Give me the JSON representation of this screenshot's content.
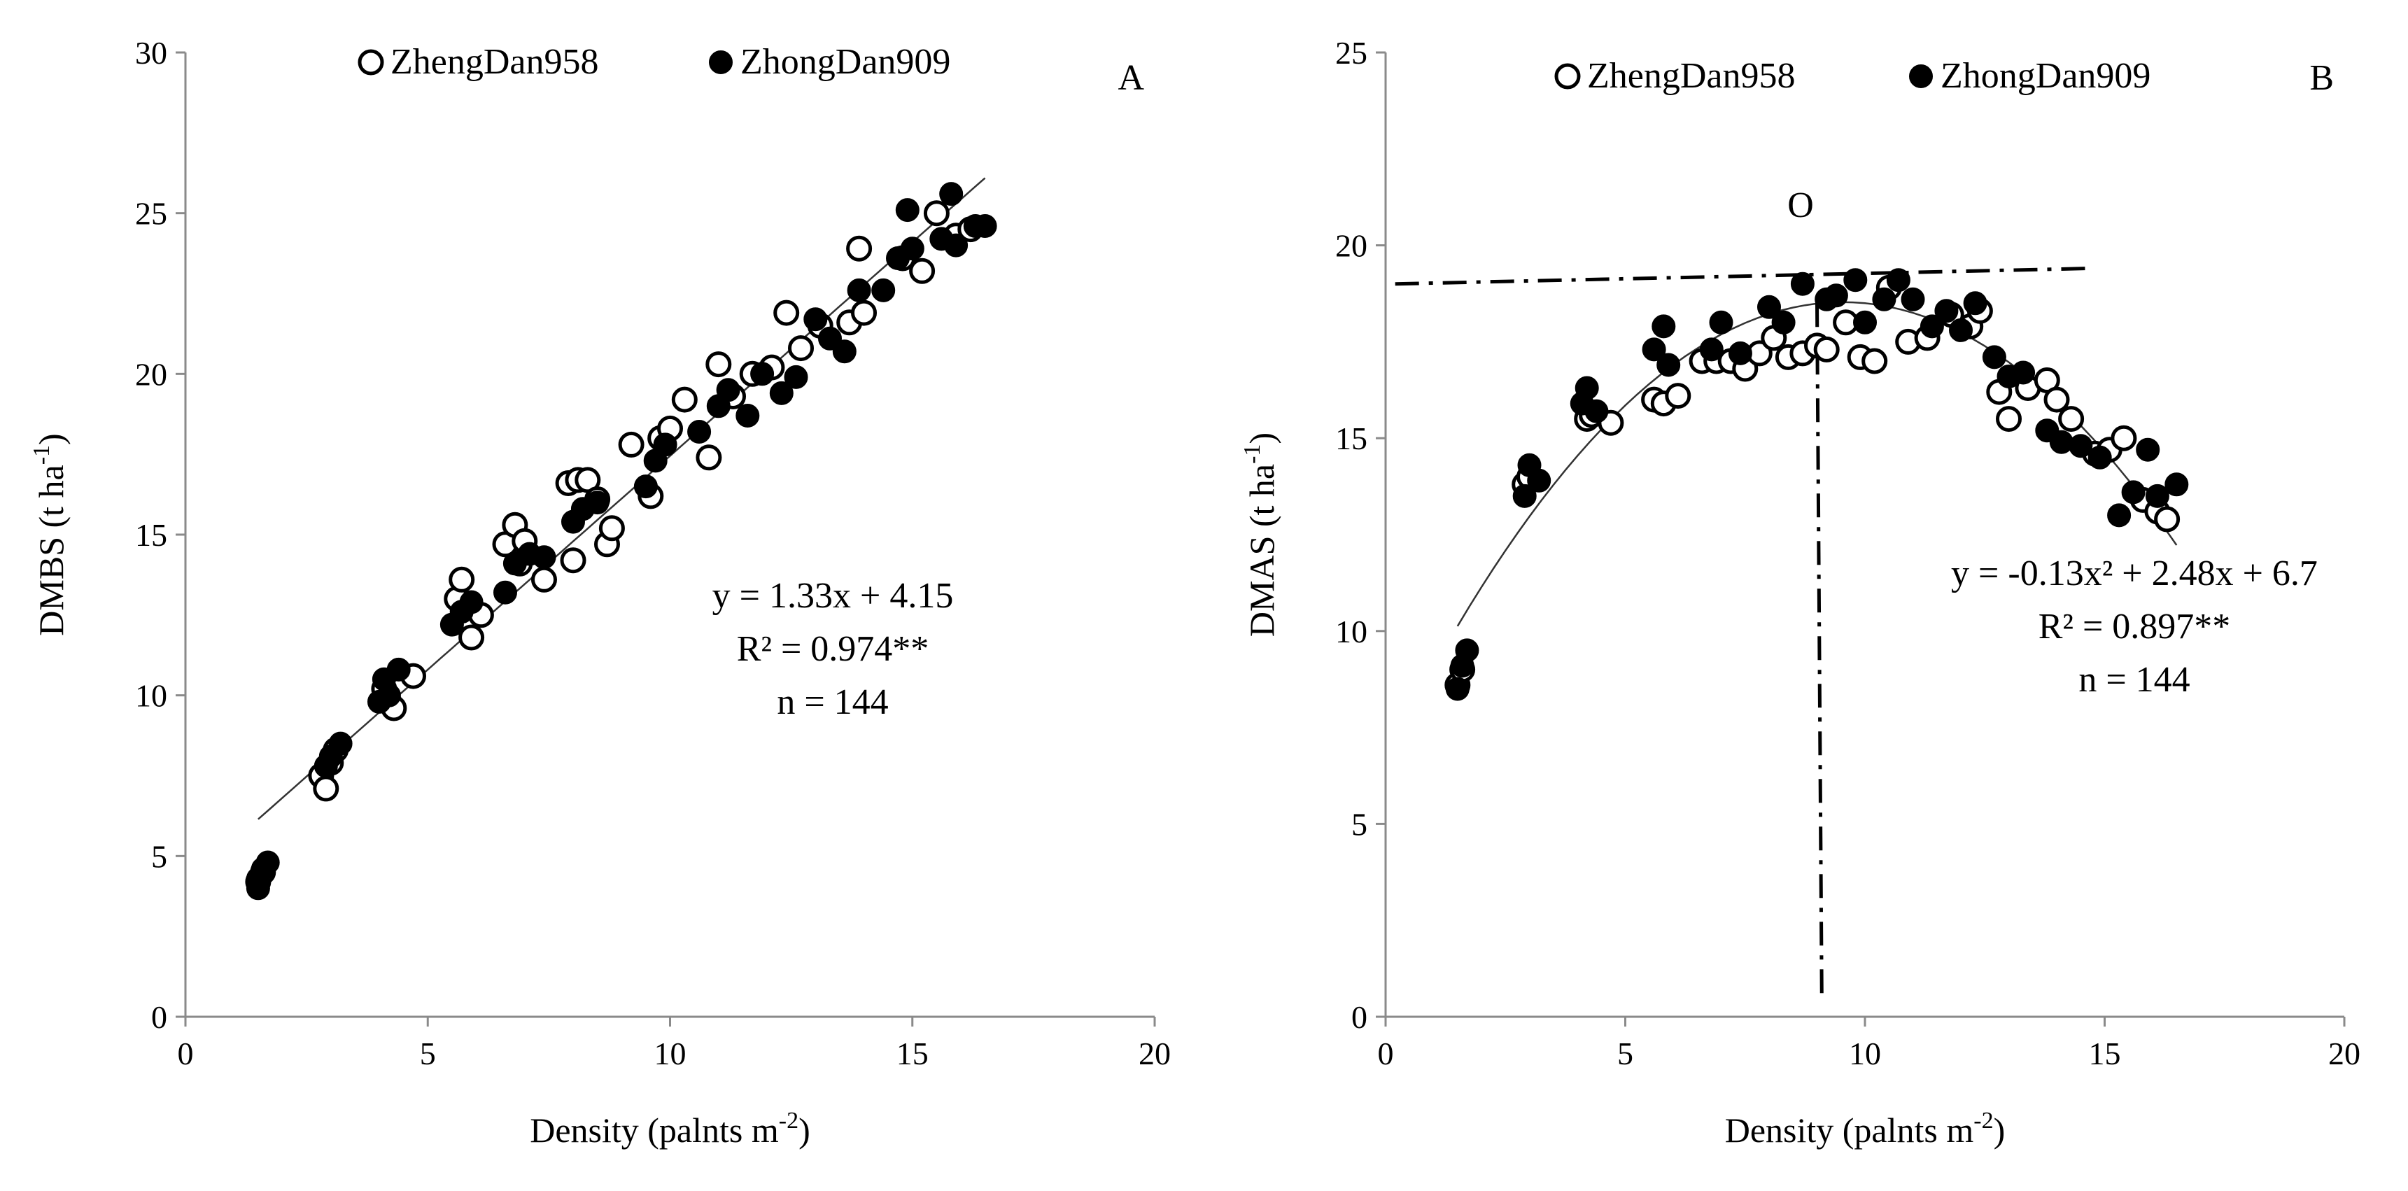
{
  "chart_data": [
    {
      "panel": "A",
      "type": "scatter",
      "xlabel": "Density (palnts m",
      "xlabel_sup": "-2",
      "xlabel_end": ")",
      "ylabel": "DMBS (t ha",
      "ylabel_sup": "-1",
      "ylabel_end": ")",
      "xlim": [
        0,
        20
      ],
      "ylim": [
        0,
        30
      ],
      "xticks": [
        0,
        5,
        10,
        15,
        20
      ],
      "yticks": [
        0,
        5,
        10,
        15,
        20,
        25,
        30
      ],
      "legend": [
        "ZhengDan958",
        "ZhongDan909"
      ],
      "legend_position": "top",
      "annotations": [
        "y = 1.33x + 4.15",
        "R² = 0.974**",
        "n = 144"
      ],
      "fit": {
        "type": "linear",
        "a": 1.33,
        "b": 4.15,
        "x_range": [
          1.5,
          16.5
        ]
      },
      "series": [
        {
          "name": "ZhengDan958",
          "marker": "open",
          "points": [
            [
              1.5,
              4.2
            ],
            [
              1.6,
              4.5
            ],
            [
              2.8,
              7.5
            ],
            [
              2.9,
              7.1
            ],
            [
              3.0,
              7.9
            ],
            [
              3.1,
              8.3
            ],
            [
              4.1,
              10.2
            ],
            [
              4.2,
              9.8
            ],
            [
              4.3,
              9.6
            ],
            [
              4.7,
              10.6
            ],
            [
              5.6,
              13.0
            ],
            [
              5.7,
              13.6
            ],
            [
              5.8,
              12.2
            ],
            [
              5.9,
              11.8
            ],
            [
              6.1,
              12.5
            ],
            [
              6.6,
              14.7
            ],
            [
              6.8,
              15.3
            ],
            [
              6.9,
              14.1
            ],
            [
              7.0,
              14.8
            ],
            [
              7.4,
              13.6
            ],
            [
              7.9,
              16.6
            ],
            [
              8.0,
              14.2
            ],
            [
              8.1,
              16.7
            ],
            [
              8.3,
              16.7
            ],
            [
              8.5,
              16.1
            ],
            [
              8.7,
              14.7
            ],
            [
              8.8,
              15.2
            ],
            [
              9.2,
              17.8
            ],
            [
              9.6,
              16.2
            ],
            [
              9.8,
              18.0
            ],
            [
              10.0,
              18.3
            ],
            [
              10.3,
              19.2
            ],
            [
              10.8,
              17.4
            ],
            [
              11.0,
              20.3
            ],
            [
              11.3,
              19.3
            ],
            [
              11.7,
              20.0
            ],
            [
              12.1,
              20.2
            ],
            [
              12.4,
              21.9
            ],
            [
              12.7,
              20.8
            ],
            [
              13.1,
              21.5
            ],
            [
              13.7,
              21.6
            ],
            [
              13.9,
              23.9
            ],
            [
              14.0,
              21.9
            ],
            [
              14.8,
              23.6
            ],
            [
              15.2,
              23.2
            ],
            [
              15.5,
              25.0
            ],
            [
              15.9,
              24.3
            ],
            [
              16.2,
              24.5
            ]
          ]
        },
        {
          "name": "ZhongDan909",
          "marker": "filled",
          "points": [
            [
              1.5,
              4.0
            ],
            [
              1.5,
              4.3
            ],
            [
              1.6,
              4.6
            ],
            [
              1.7,
              4.8
            ],
            [
              2.9,
              7.8
            ],
            [
              3.0,
              8.1
            ],
            [
              3.2,
              8.5
            ],
            [
              4.0,
              9.8
            ],
            [
              4.1,
              10.5
            ],
            [
              4.2,
              10.0
            ],
            [
              4.4,
              10.8
            ],
            [
              5.5,
              12.2
            ],
            [
              5.7,
              12.6
            ],
            [
              5.9,
              12.9
            ],
            [
              6.6,
              13.2
            ],
            [
              6.8,
              14.1
            ],
            [
              7.1,
              14.4
            ],
            [
              7.4,
              14.3
            ],
            [
              8.0,
              15.4
            ],
            [
              8.2,
              15.8
            ],
            [
              8.5,
              16.0
            ],
            [
              9.5,
              16.5
            ],
            [
              9.7,
              17.3
            ],
            [
              9.9,
              17.8
            ],
            [
              10.6,
              18.2
            ],
            [
              11.0,
              19.0
            ],
            [
              11.2,
              19.5
            ],
            [
              11.6,
              18.7
            ],
            [
              11.9,
              20.0
            ],
            [
              12.3,
              19.4
            ],
            [
              12.6,
              19.9
            ],
            [
              13.0,
              21.7
            ],
            [
              13.3,
              21.1
            ],
            [
              13.6,
              20.7
            ],
            [
              13.9,
              22.6
            ],
            [
              14.4,
              22.6
            ],
            [
              14.7,
              23.6
            ],
            [
              14.9,
              25.1
            ],
            [
              15.0,
              23.9
            ],
            [
              15.6,
              24.2
            ],
            [
              15.8,
              25.6
            ],
            [
              15.9,
              24.0
            ],
            [
              16.3,
              24.6
            ],
            [
              16.5,
              24.6
            ]
          ]
        }
      ]
    },
    {
      "panel": "B",
      "type": "scatter",
      "xlabel": "Density (palnts m",
      "xlabel_sup": "-2",
      "xlabel_end": ")",
      "ylabel": "DMAS (t ha",
      "ylabel_sup": "-1",
      "ylabel_end": ")",
      "xlim": [
        0,
        20
      ],
      "ylim": [
        0,
        25
      ],
      "xticks": [
        0,
        5,
        10,
        15,
        20
      ],
      "yticks": [
        0,
        5,
        10,
        15,
        20,
        25
      ],
      "legend": [
        "ZhengDan958",
        "ZhongDan909"
      ],
      "legend_position": "top",
      "annotations": [
        "y = -0.13x² + 2.48x + 6.7",
        "R² = 0.897**",
        "n = 144"
      ],
      "point_label": "O",
      "optimum": {
        "x": 9.0,
        "y_start": 19.0,
        "y_end": 19.4
      },
      "fit": {
        "type": "quadratic",
        "a": -0.13,
        "b": 2.48,
        "c": 6.7,
        "x_range": [
          1.5,
          16.5
        ]
      },
      "series": [
        {
          "name": "ZhengDan958",
          "marker": "open",
          "points": [
            [
              1.5,
              8.6
            ],
            [
              1.6,
              9.0
            ],
            [
              2.9,
              13.8
            ],
            [
              3.0,
              14.0
            ],
            [
              4.2,
              15.5
            ],
            [
              4.3,
              15.6
            ],
            [
              4.7,
              15.4
            ],
            [
              5.6,
              16.0
            ],
            [
              5.8,
              15.9
            ],
            [
              6.1,
              16.1
            ],
            [
              6.6,
              17.0
            ],
            [
              6.9,
              17.0
            ],
            [
              7.2,
              17.0
            ],
            [
              7.5,
              16.8
            ],
            [
              7.8,
              17.2
            ],
            [
              8.1,
              17.6
            ],
            [
              8.4,
              17.1
            ],
            [
              8.7,
              17.2
            ],
            [
              9.0,
              17.4
            ],
            [
              9.2,
              17.3
            ],
            [
              9.6,
              18.0
            ],
            [
              9.9,
              17.1
            ],
            [
              10.2,
              17.0
            ],
            [
              10.5,
              18.9
            ],
            [
              10.9,
              17.5
            ],
            [
              11.3,
              17.6
            ],
            [
              11.8,
              18.2
            ],
            [
              12.2,
              17.9
            ],
            [
              12.4,
              18.3
            ],
            [
              12.8,
              16.2
            ],
            [
              13.0,
              15.5
            ],
            [
              13.4,
              16.3
            ],
            [
              13.8,
              16.5
            ],
            [
              14.0,
              16.0
            ],
            [
              14.3,
              15.5
            ],
            [
              14.8,
              14.6
            ],
            [
              15.1,
              14.7
            ],
            [
              15.4,
              15.0
            ],
            [
              15.8,
              13.4
            ],
            [
              16.1,
              13.1
            ],
            [
              16.3,
              12.9
            ]
          ]
        },
        {
          "name": "ZhongDan909",
          "marker": "filled",
          "points": [
            [
              1.5,
              8.5
            ],
            [
              1.6,
              9.1
            ],
            [
              1.7,
              9.5
            ],
            [
              2.9,
              13.5
            ],
            [
              3.0,
              14.3
            ],
            [
              3.2,
              13.9
            ],
            [
              4.1,
              15.9
            ],
            [
              4.2,
              16.3
            ],
            [
              4.4,
              15.7
            ],
            [
              5.6,
              17.3
            ],
            [
              5.8,
              17.9
            ],
            [
              5.9,
              16.9
            ],
            [
              6.8,
              17.3
            ],
            [
              7.0,
              18.0
            ],
            [
              7.4,
              17.2
            ],
            [
              8.0,
              18.4
            ],
            [
              8.3,
              18.0
            ],
            [
              8.7,
              19.0
            ],
            [
              9.2,
              18.6
            ],
            [
              9.4,
              18.7
            ],
            [
              9.8,
              19.1
            ],
            [
              10.0,
              18.0
            ],
            [
              10.4,
              18.6
            ],
            [
              10.7,
              19.1
            ],
            [
              11.0,
              18.6
            ],
            [
              11.4,
              17.9
            ],
            [
              11.7,
              18.3
            ],
            [
              12.0,
              17.8
            ],
            [
              12.3,
              18.5
            ],
            [
              12.7,
              17.1
            ],
            [
              13.0,
              16.6
            ],
            [
              13.3,
              16.7
            ],
            [
              13.8,
              15.2
            ],
            [
              14.1,
              14.9
            ],
            [
              14.5,
              14.8
            ],
            [
              14.9,
              14.5
            ],
            [
              15.3,
              13.0
            ],
            [
              15.6,
              13.6
            ],
            [
              15.9,
              14.7
            ],
            [
              16.1,
              13.5
            ],
            [
              16.5,
              13.8
            ]
          ]
        }
      ]
    }
  ]
}
